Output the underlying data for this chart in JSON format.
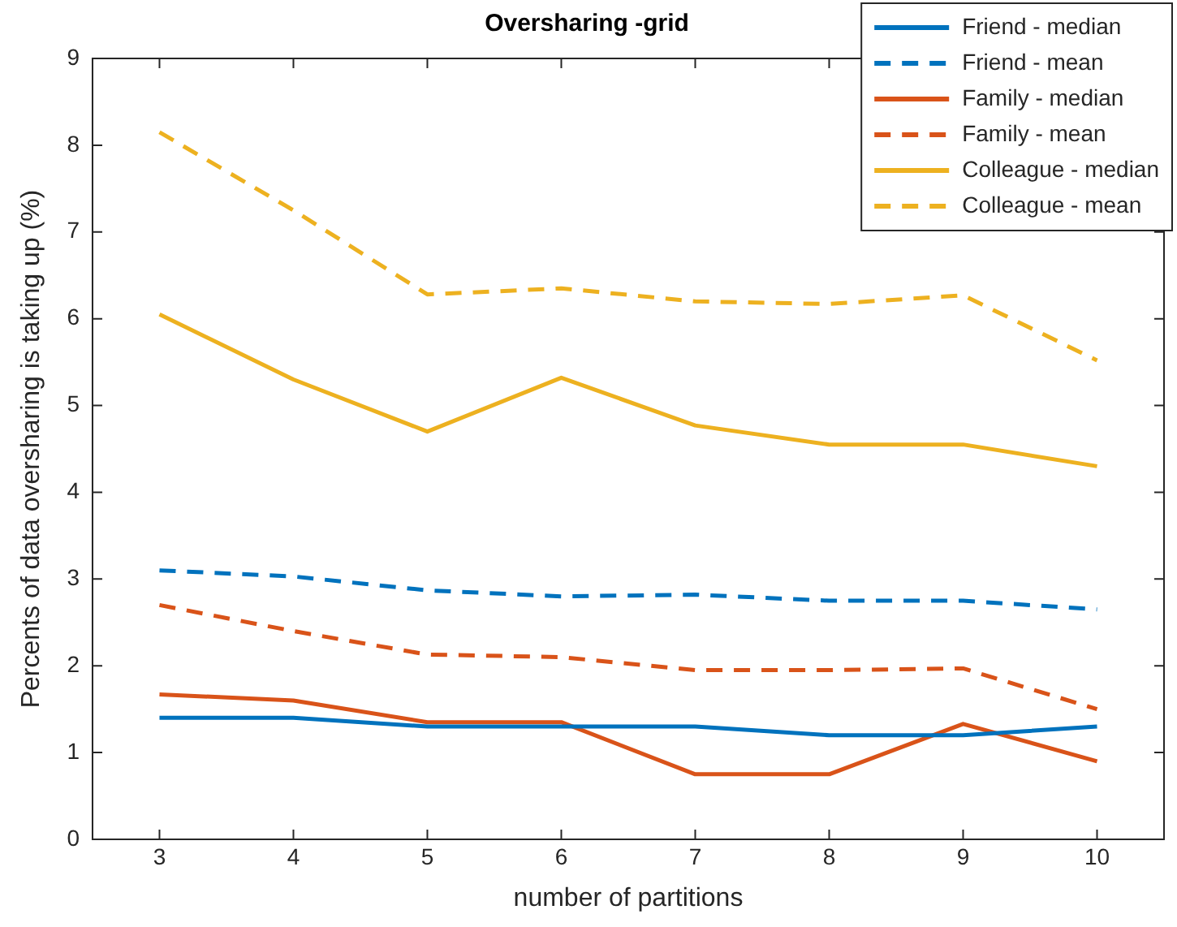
{
  "chart_data": {
    "type": "line",
    "title": "Oversharing -grid",
    "xlabel": "number of partitions",
    "ylabel": "Percents of data oversharing is taking up (%)",
    "x": [
      3,
      4,
      5,
      6,
      7,
      8,
      9,
      10
    ],
    "xlim": [
      2.5,
      10.5
    ],
    "xticks": [
      3,
      4,
      5,
      6,
      7,
      8,
      9,
      10
    ],
    "ylim": [
      0,
      9
    ],
    "yticks": [
      0,
      1,
      2,
      3,
      4,
      5,
      6,
      7,
      8,
      9
    ],
    "grid": false,
    "legend": "top right",
    "marker": "none",
    "series": [
      {
        "name": "Friend - median",
        "color": "#0072bd",
        "line_style": "solid",
        "values": [
          1.4,
          1.4,
          1.3,
          1.3,
          1.3,
          1.2,
          1.2,
          1.3
        ]
      },
      {
        "name": "Friend - mean",
        "color": "#0072bd",
        "line_style": "dashed",
        "values": [
          3.1,
          3.03,
          2.87,
          2.8,
          2.82,
          2.75,
          2.75,
          2.65
        ]
      },
      {
        "name": "Family - median",
        "color": "#d95319",
        "line_style": "solid",
        "values": [
          1.67,
          1.6,
          1.35,
          1.35,
          0.75,
          0.75,
          1.33,
          0.9
        ]
      },
      {
        "name": "Family - mean",
        "color": "#d95319",
        "line_style": "dashed",
        "values": [
          2.7,
          2.4,
          2.13,
          2.1,
          1.95,
          1.95,
          1.97,
          1.5
        ]
      },
      {
        "name": "Colleague - median",
        "color": "#edb120",
        "line_style": "solid",
        "values": [
          6.05,
          5.3,
          4.7,
          5.32,
          4.77,
          4.55,
          4.55,
          4.3
        ]
      },
      {
        "name": "Colleague - mean",
        "color": "#edb120",
        "line_style": "dashed",
        "values": [
          8.15,
          7.25,
          6.28,
          6.35,
          6.2,
          6.17,
          6.27,
          5.52
        ]
      }
    ]
  }
}
